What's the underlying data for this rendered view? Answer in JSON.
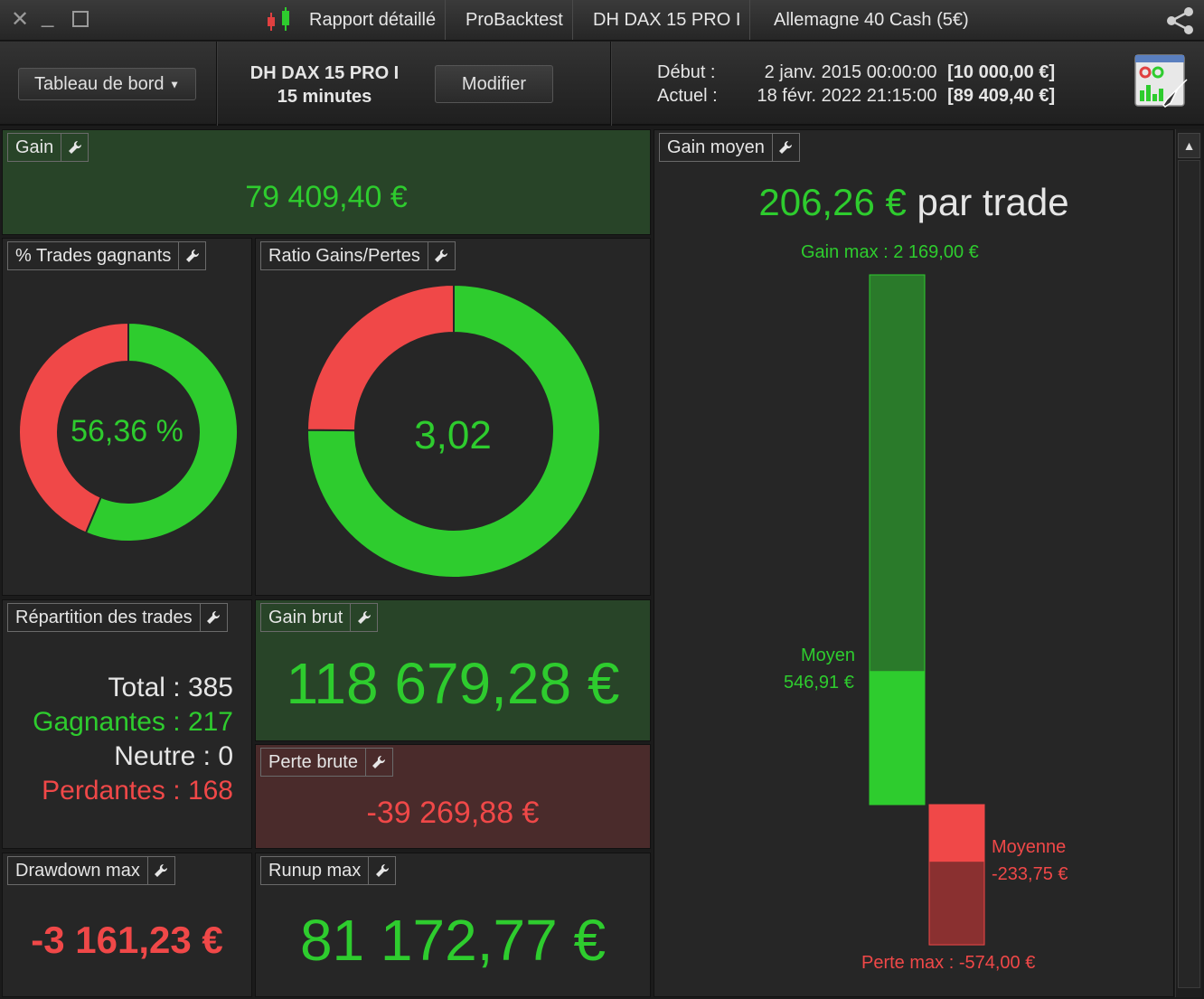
{
  "titlebar": {
    "tabs": [
      "Rapport détaillé",
      "ProBacktest",
      "DH DAX 15 PRO I",
      "Allemagne 40 Cash (5€)"
    ]
  },
  "toolbar": {
    "dashboard_label": "Tableau de bord",
    "strategy_name": "DH DAX 15 PRO I",
    "timeframe": "15 minutes",
    "modify_label": "Modifier",
    "start_label": "Début :",
    "start_date": "2 janv. 2015 00:00:00",
    "start_capital": "[10 000,00 €]",
    "current_label": "Actuel :",
    "current_date": "18 févr. 2022 21:15:00",
    "current_capital": "[89 409,40 €]"
  },
  "panels": {
    "gain": {
      "title": "Gain",
      "value": "79 409,40 €"
    },
    "win_pct": {
      "title": "% Trades gagnants",
      "value": "56,36 %",
      "fraction": 0.5636
    },
    "ratio": {
      "title": "Ratio Gains/Pertes",
      "value": "3,02",
      "fraction": 0.7513
    },
    "distribution": {
      "title": "Répartition des trades",
      "total_label": "Total :",
      "total": "385",
      "win_label": "Gagnantes :",
      "win": "217",
      "neutral_label": "Neutre :",
      "neutral": "0",
      "loss_label": "Perdantes :",
      "loss": "168"
    },
    "gross_gain": {
      "title": "Gain brut",
      "value": "118 679,28 €"
    },
    "gross_loss": {
      "title": "Perte brute",
      "value": "-39 269,88 €"
    },
    "drawdown": {
      "title": "Drawdown max",
      "value": "-3 161,23 €"
    },
    "runup": {
      "title": "Runup max",
      "value": "81 172,77 €"
    },
    "avg_gain": {
      "title": "Gain moyen",
      "value": "206,26 €",
      "suffix": "par trade",
      "max_gain_label": "Gain max : 2 169,00 €",
      "avg_win_label": "Moyen",
      "avg_win_value": "546,91 €",
      "avg_loss_label": "Moyenne",
      "avg_loss_value": "-233,75 €",
      "max_loss_label": "Perte max : -574,00 €",
      "max_gain": 2169.0,
      "avg_win": 546.91,
      "avg_loss": -233.75,
      "max_loss": -574.0
    }
  },
  "colors": {
    "green": "#2ecc2e",
    "red": "#f04848",
    "dark_green": "#2a7a2a",
    "dark_red": "#8a3030"
  }
}
